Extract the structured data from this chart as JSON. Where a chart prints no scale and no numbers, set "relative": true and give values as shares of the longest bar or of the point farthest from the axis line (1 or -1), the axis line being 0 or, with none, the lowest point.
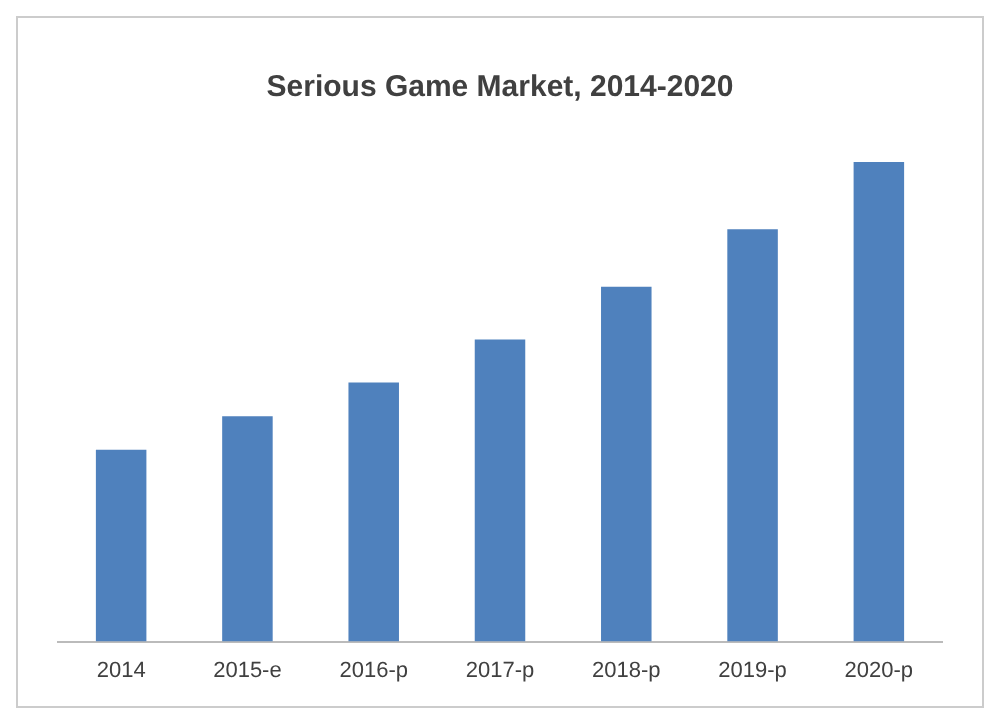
{
  "chart_data": {
    "type": "bar",
    "title": "Serious Game Market, 2014-2020",
    "categories": [
      "2014",
      "2015-e",
      "2016-p",
      "2017-p",
      "2018-p",
      "2019-p",
      "2020-p"
    ],
    "values": [
      0.4,
      0.47,
      0.54,
      0.63,
      0.74,
      0.86,
      1
    ],
    "color": "#4f81bd",
    "relative": true,
    "grid": false,
    "legend": false
  }
}
